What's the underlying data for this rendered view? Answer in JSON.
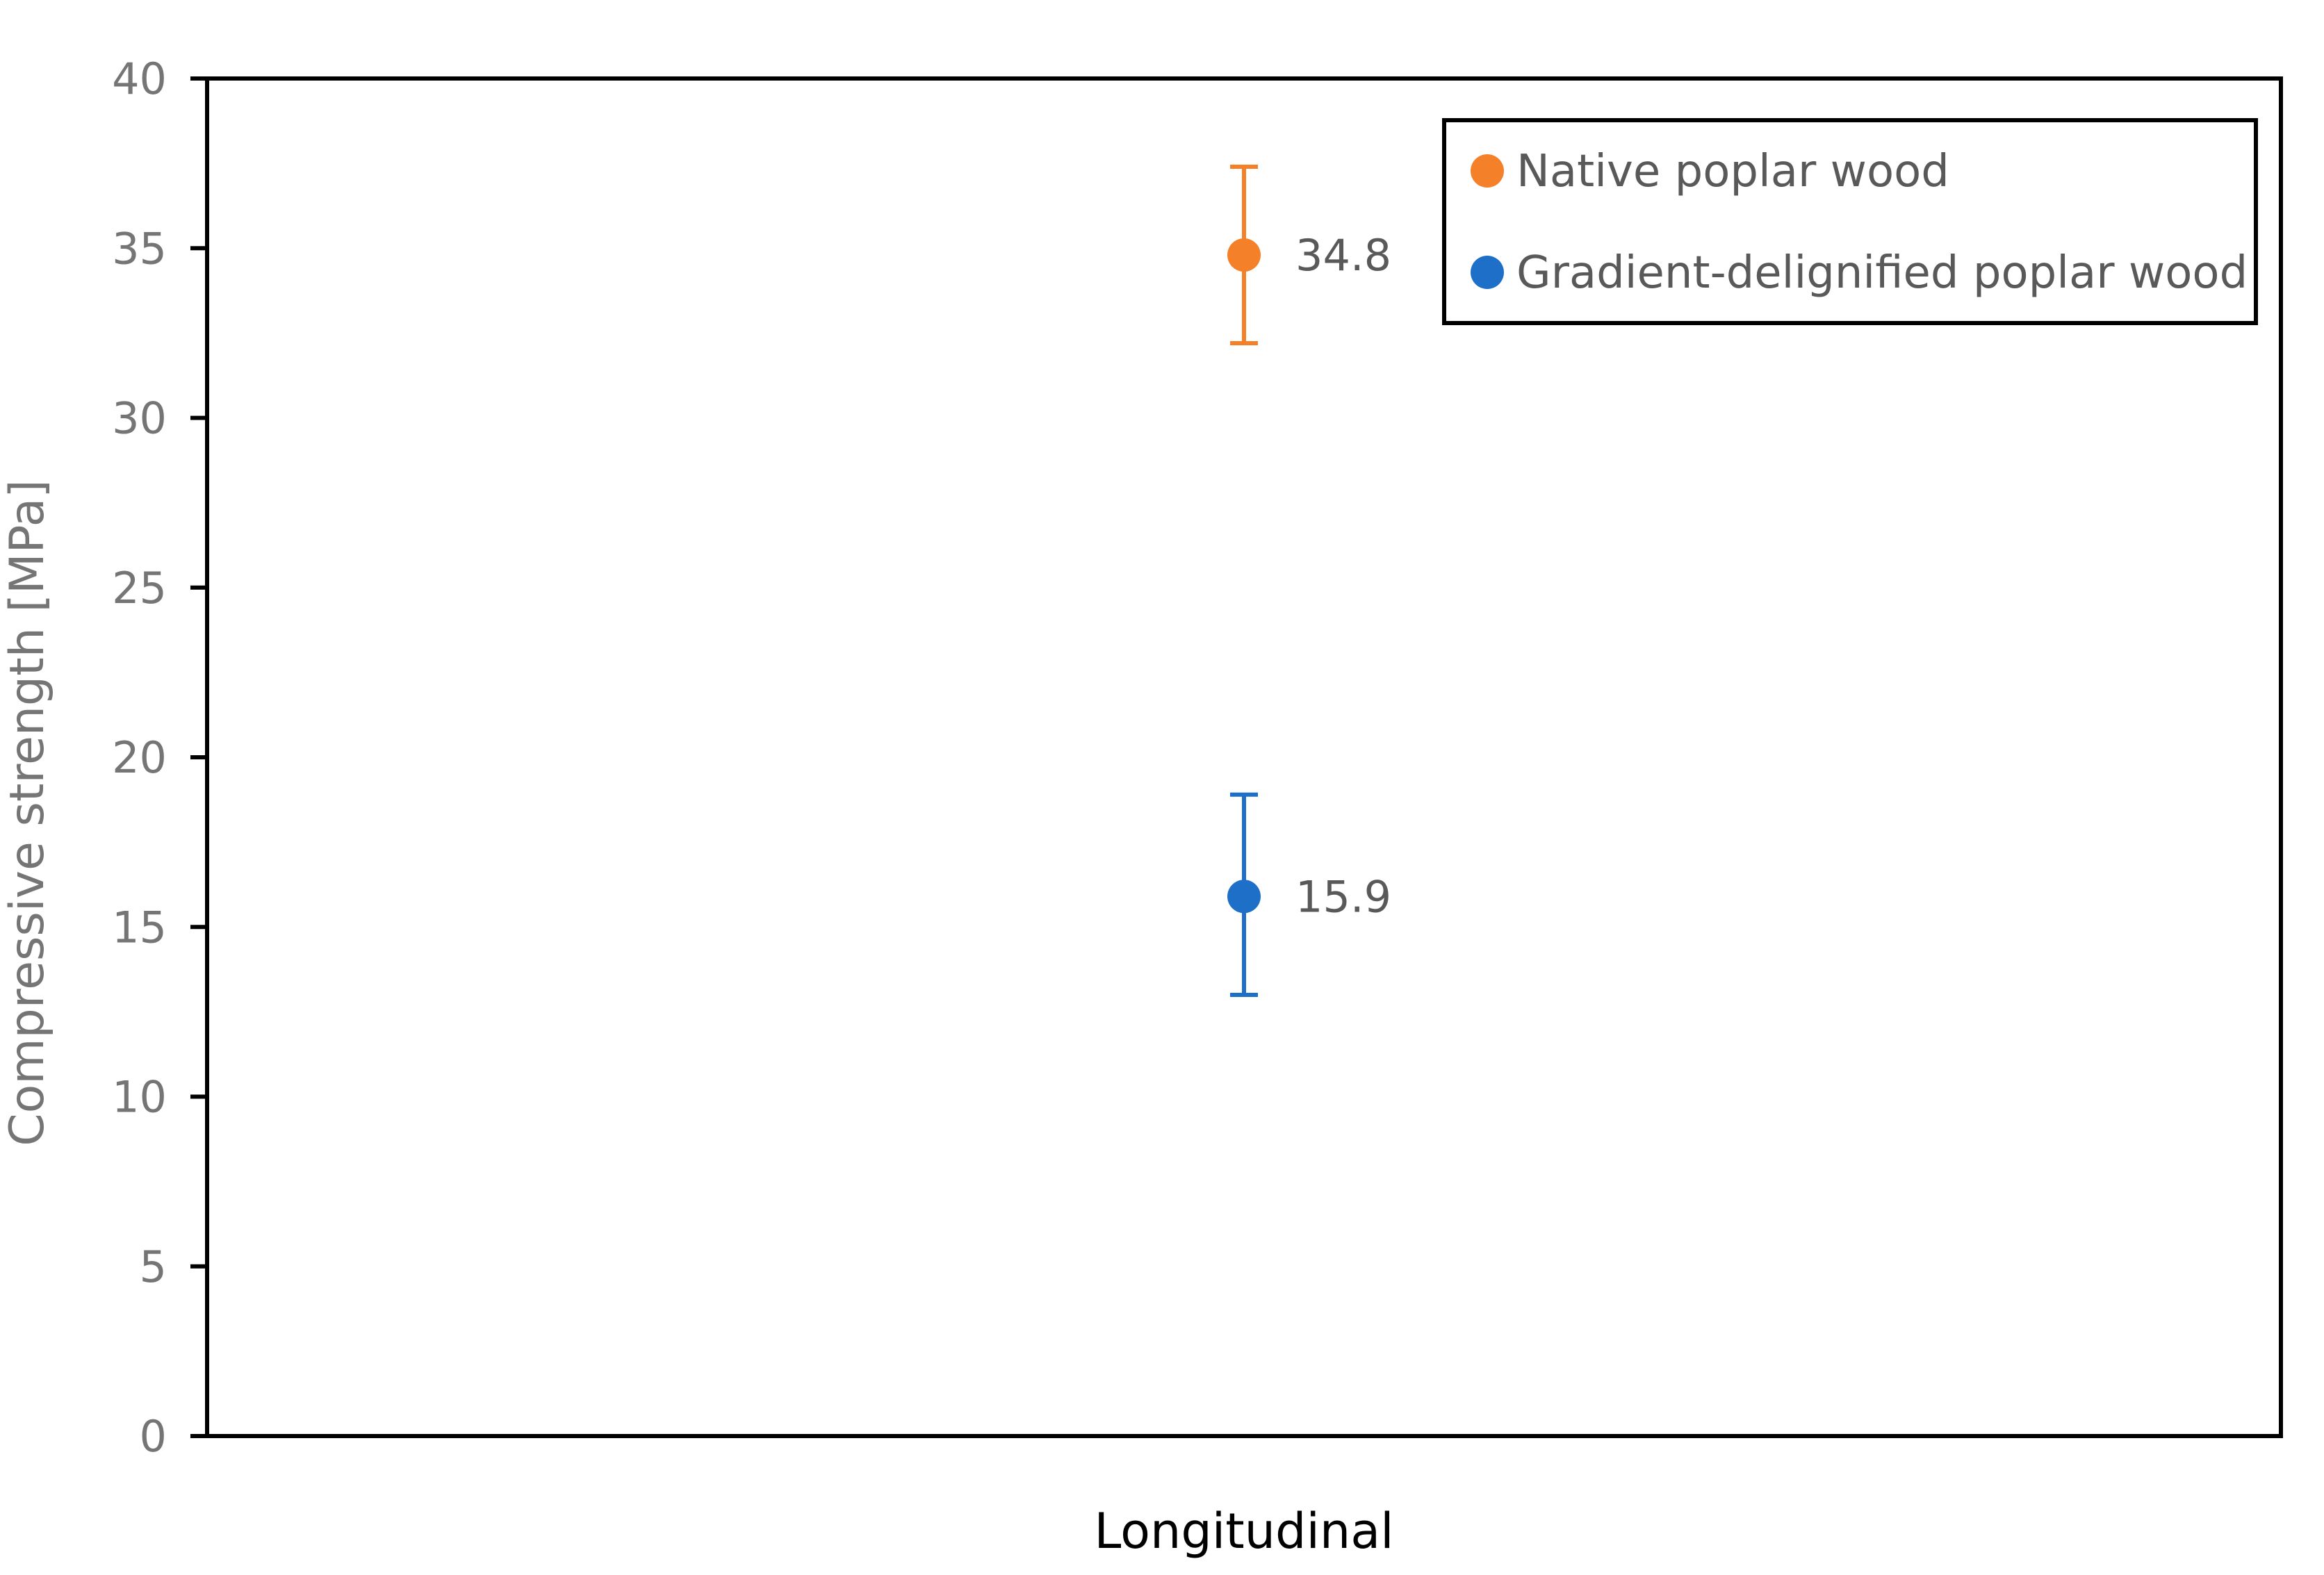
{
  "chart_data": {
    "type": "scatter",
    "categories": [
      "Longitudinal"
    ],
    "ylabel": "Compressive strength [MPa]",
    "ylim": [
      0,
      40
    ],
    "yticks": [
      0,
      5,
      10,
      15,
      20,
      25,
      30,
      35,
      40
    ],
    "grid": false,
    "legend_position": "top-right",
    "series": [
      {
        "name": "Native poplar wood",
        "color": "#F5802A",
        "category": "Longitudinal",
        "value": 34.8,
        "value_label": "34.8",
        "error_low": 32.2,
        "error_high": 37.4
      },
      {
        "name": "Gradient-delignified poplar wood",
        "color": "#1E6FC8",
        "category": "Longitudinal",
        "value": 15.9,
        "value_label": "15.9",
        "error_low": 13.0,
        "error_high": 18.9
      }
    ]
  }
}
